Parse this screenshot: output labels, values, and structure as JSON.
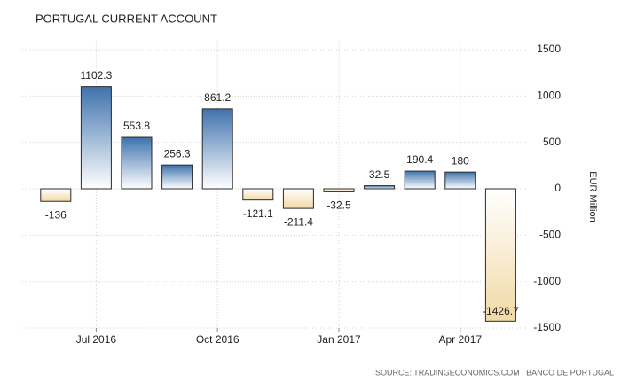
{
  "chart_data": {
    "type": "bar",
    "title": "PORTUGAL CURRENT ACCOUNT",
    "y_axis_label": "EUR Million",
    "source": "SOURCE: TRADINGECONOMICS.COM | BANCO DE PORTUGAL",
    "categories": [
      null,
      "Jul 2016",
      null,
      null,
      "Oct 2016",
      null,
      null,
      "Jan 2017",
      null,
      null,
      "Apr 2017",
      null
    ],
    "values": [
      -136,
      1102.3,
      553.8,
      256.3,
      861.2,
      -121.1,
      -211.4,
      -32.5,
      32.5,
      190.4,
      180,
      -1426.7
    ],
    "color": "#3f72ad",
    "negative_color": "#f2d9a6",
    "ylim": [
      -1500,
      1500
    ],
    "yticks": [
      1500,
      1000,
      500,
      0,
      -500,
      -1000,
      -1500
    ],
    "grid": true
  }
}
